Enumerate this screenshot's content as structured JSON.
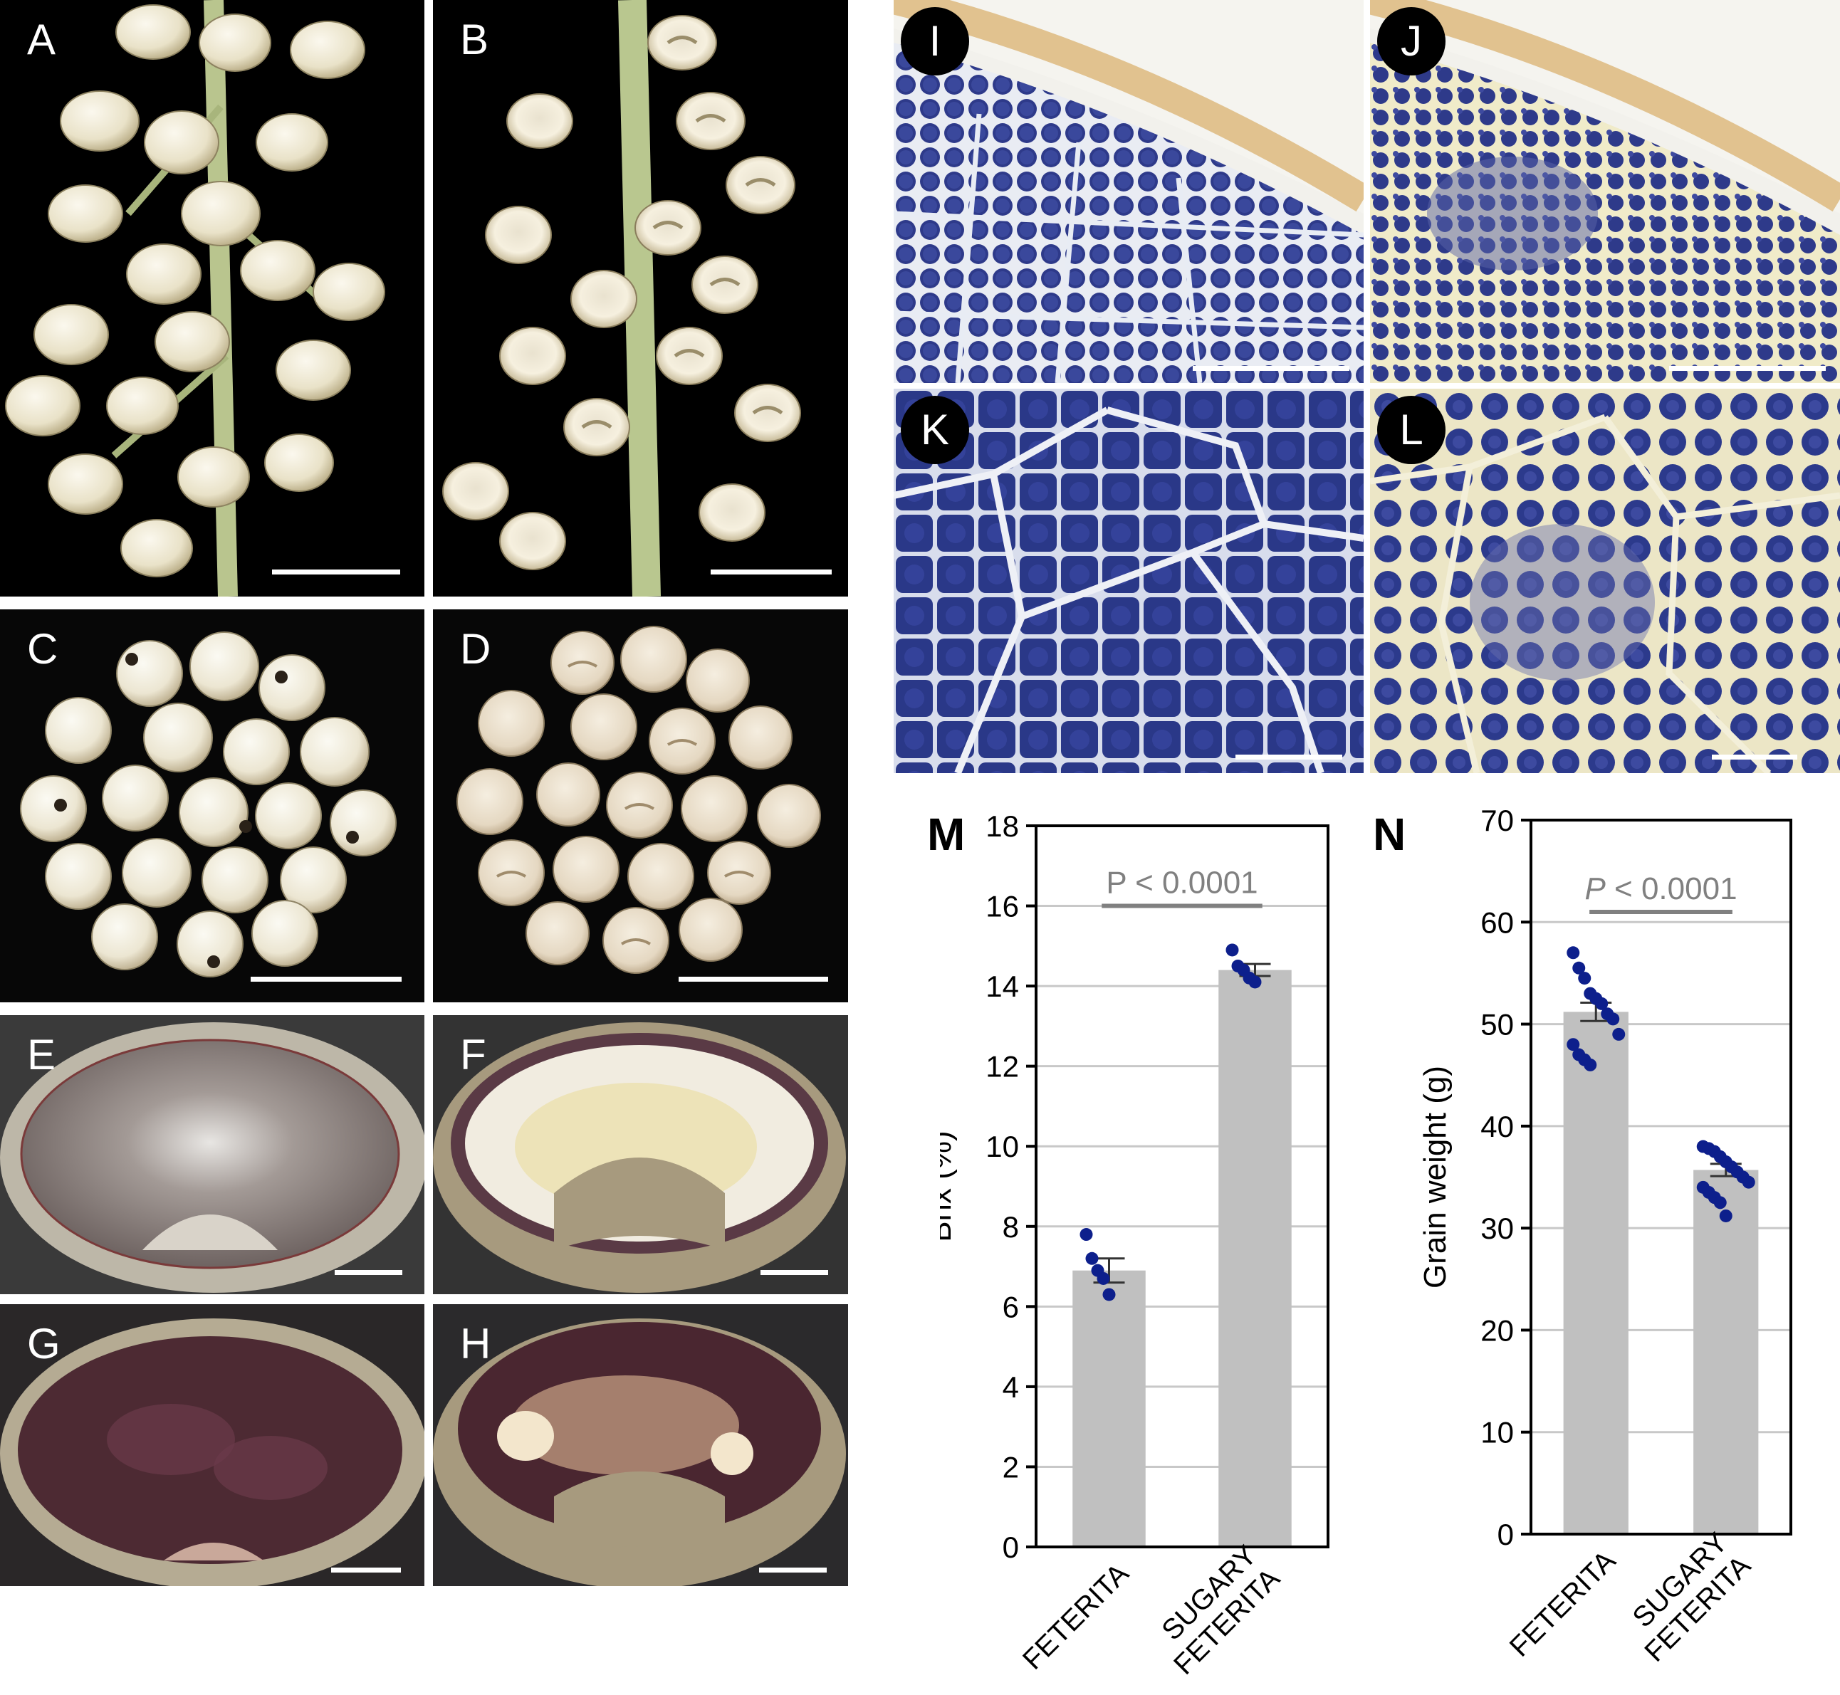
{
  "panels": {
    "A": "A",
    "B": "B",
    "C": "C",
    "D": "D",
    "E": "E",
    "F": "F",
    "G": "G",
    "H": "H",
    "I": "I",
    "J": "J",
    "K": "K",
    "L": "L",
    "M": "M",
    "N": "N"
  },
  "colors": {
    "bar": "#c0c0c0",
    "points": "#0d1f8c",
    "significance": "#808080",
    "grid": "#c8c8c8"
  },
  "chart_data": [
    {
      "type": "bar",
      "panel": "M",
      "categories": [
        "FETERITA",
        "SUGARY FETERITA"
      ],
      "category_lines": [
        [
          "FETERITA"
        ],
        [
          "SUGARY",
          "FETERITA"
        ]
      ],
      "values": [
        6.9,
        14.4
      ],
      "error": [
        0.3,
        0.15
      ],
      "points": [
        [
          7.8,
          7.2,
          6.9,
          6.7,
          6.3
        ],
        [
          14.9,
          14.5,
          14.4,
          14.2,
          14.1
        ]
      ],
      "ylabel": "Brix (%)",
      "ylim": [
        0,
        18
      ],
      "yticks": [
        0,
        2,
        4,
        6,
        8,
        10,
        12,
        14,
        16,
        18
      ],
      "grid": true,
      "annotation": "P < 0.0001",
      "annotation_level": 16.0
    },
    {
      "type": "bar",
      "panel": "N",
      "categories": [
        "FETERITA",
        "SUGARY FETERITA"
      ],
      "category_lines": [
        [
          "FETERITA"
        ],
        [
          "SUGARY",
          "FETERITA"
        ]
      ],
      "values": [
        51.2,
        35.7
      ],
      "error": [
        0.9,
        0.6
      ],
      "points": [
        [
          57,
          55.5,
          54.5,
          53,
          52.5,
          52,
          51,
          50.5,
          49,
          48,
          47,
          46.5,
          46
        ],
        [
          38,
          37.8,
          37.5,
          37,
          36.5,
          36,
          35.5,
          35,
          34.5,
          34,
          33.5,
          33,
          32.5,
          31.2
        ]
      ],
      "ylabel": "Grain weight (g)",
      "ylim": [
        0,
        70
      ],
      "yticks": [
        0,
        10,
        20,
        30,
        40,
        50,
        60,
        70
      ],
      "grid": true,
      "annotation": "P < 0.0001",
      "annotation_level": 61.0
    }
  ]
}
